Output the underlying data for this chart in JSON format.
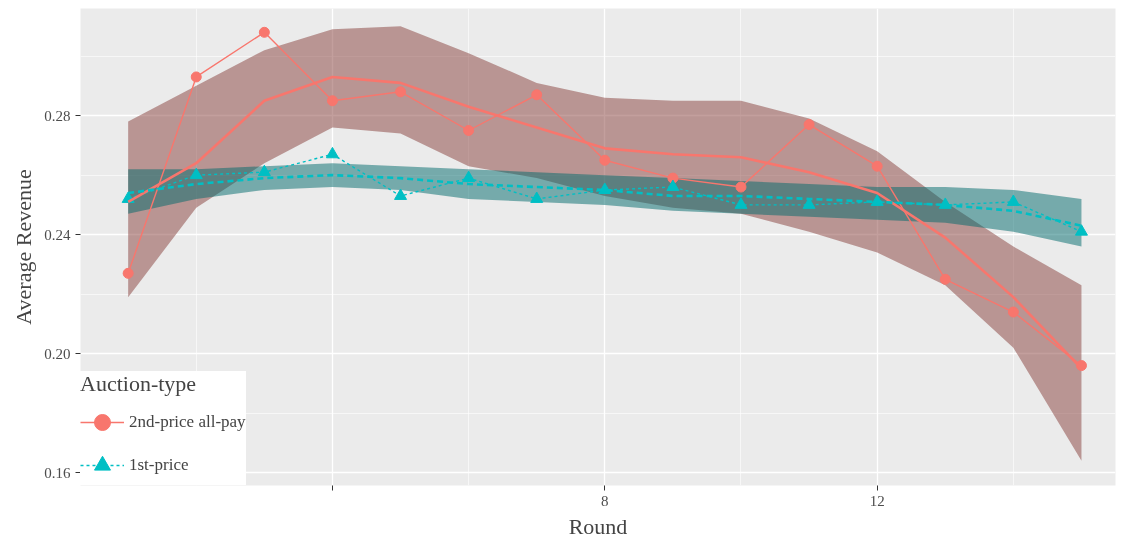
{
  "chart_data": {
    "type": "line",
    "xlabel": "Round",
    "ylabel": "Average Revenue",
    "legend_title": "Auction-type",
    "x": [
      1,
      2,
      3,
      4,
      5,
      6,
      7,
      8,
      9,
      10,
      11,
      12,
      13,
      14,
      15
    ],
    "xlim": [
      0.3,
      15.5
    ],
    "ylim": [
      0.1557,
      0.316
    ],
    "xticks": [
      {
        "value": 4,
        "label": null
      },
      8,
      12
    ],
    "yticks": [
      0.16,
      {
        "value": 0.2,
        "label": "0.20"
      },
      0.24,
      0.28
    ],
    "grid": true,
    "legend": "bottom left",
    "series": [
      {
        "name": "2nd-price all-pay",
        "color": "#f8766d",
        "marker": "circle",
        "line_style": "solid",
        "values": [
          0.227,
          0.293,
          0.308,
          0.285,
          0.288,
          0.275,
          0.287,
          0.265,
          0.259,
          0.256,
          0.277,
          0.263,
          0.225,
          0.214,
          0.196
        ]
      },
      {
        "name": "1st-price",
        "color": "#00bfc4",
        "marker": "triangle",
        "line_style": "dotted",
        "values": [
          0.252,
          0.26,
          0.261,
          0.267,
          0.253,
          0.259,
          0.252,
          0.255,
          0.256,
          0.25,
          0.25,
          0.251,
          0.25,
          0.251,
          0.241
        ]
      },
      {
        "color": "#f8766d",
        "marker": "none",
        "line_style": "solid",
        "values": [
          0.251,
          0.264,
          0.285,
          0.293,
          0.291,
          0.283,
          0.276,
          0.269,
          0.267,
          0.266,
          0.261,
          0.254,
          0.239,
          0.219,
          0.195
        ],
        "lower": [
          0.219,
          0.249,
          0.264,
          0.276,
          0.274,
          0.263,
          0.259,
          0.253,
          0.249,
          0.247,
          0.241,
          0.234,
          0.223,
          0.202,
          0.164
        ],
        "upper": [
          0.278,
          0.29,
          0.302,
          0.309,
          0.31,
          0.301,
          0.291,
          0.286,
          0.285,
          0.285,
          0.279,
          0.268,
          0.251,
          0.236,
          0.223
        ]
      },
      {
        "color": "#00bfc4",
        "marker": "none",
        "line_style": "dashed",
        "values": [
          0.254,
          0.257,
          0.259,
          0.26,
          0.259,
          0.257,
          0.256,
          0.255,
          0.253,
          0.253,
          0.252,
          0.251,
          0.25,
          0.248,
          0.243
        ],
        "lower": [
          0.247,
          0.252,
          0.255,
          0.256,
          0.255,
          0.252,
          0.251,
          0.25,
          0.248,
          0.247,
          0.246,
          0.245,
          0.244,
          0.241,
          0.236
        ],
        "upper": [
          0.262,
          0.262,
          0.263,
          0.264,
          0.263,
          0.262,
          0.261,
          0.26,
          0.259,
          0.258,
          0.257,
          0.256,
          0.256,
          0.255,
          0.252
        ]
      }
    ]
  }
}
